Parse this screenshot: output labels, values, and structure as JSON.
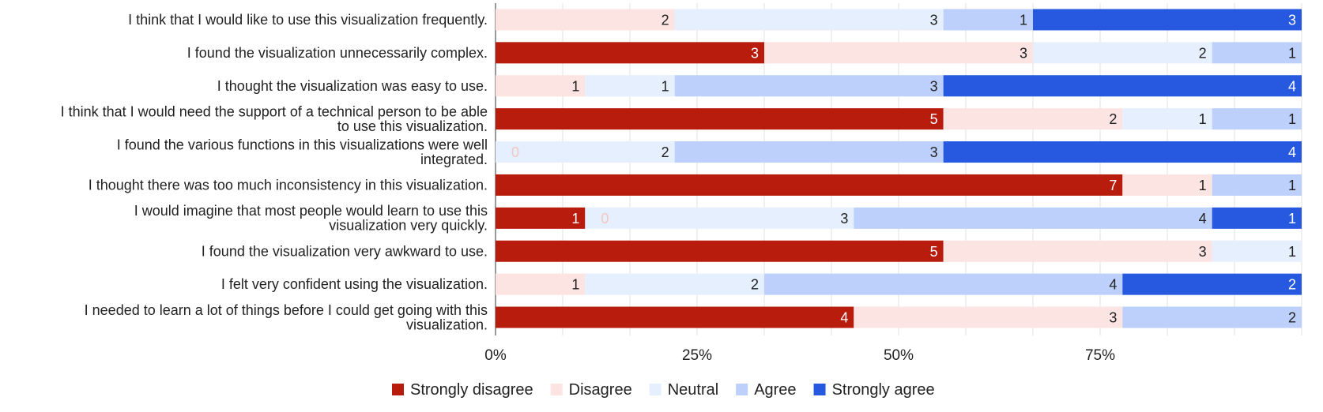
{
  "chart_data": {
    "type": "bar",
    "orientation": "horizontal",
    "stacked": "percent",
    "categories": [
      [
        "I think that I would like to use this visualization frequently."
      ],
      [
        "I found the visualization unnecessarily complex."
      ],
      [
        "I thought the visualization was easy to use."
      ],
      [
        "I think that I would need the support of a technical person to be able",
        "to use this visualization."
      ],
      [
        "I found the various functions in this visualizations were well",
        "integrated."
      ],
      [
        "I thought there was too much inconsistency in this visualization."
      ],
      [
        "I would imagine that most people would learn to use this",
        "visualization very quickly."
      ],
      [
        "I found the visualization very awkward to use."
      ],
      [
        "I felt very confident using the visualization."
      ],
      [
        "I needed to learn a lot of things before I could get going with this",
        "visualization."
      ]
    ],
    "series": [
      {
        "name": "Strongly disagree",
        "color": "#b71c0c",
        "label_color": "#ffffff",
        "values": [
          0,
          3,
          0,
          5,
          0,
          7,
          1,
          5,
          0,
          4
        ]
      },
      {
        "name": "Disagree",
        "color": "#fbe4e1",
        "label_color": "#222222",
        "values": [
          2,
          3,
          1,
          2,
          0,
          1,
          0,
          3,
          1,
          3
        ]
      },
      {
        "name": "Neutral",
        "color": "#e6effd",
        "label_color": "#222222",
        "values": [
          3,
          2,
          1,
          1,
          2,
          0,
          3,
          1,
          2,
          0
        ]
      },
      {
        "name": "Agree",
        "color": "#bcd0fb",
        "label_color": "#222222",
        "values": [
          1,
          1,
          3,
          1,
          3,
          1,
          4,
          0,
          4,
          2
        ]
      },
      {
        "name": "Strongly agree",
        "color": "#2659e0",
        "label_color": "#ffffff",
        "values": [
          3,
          0,
          4,
          0,
          4,
          0,
          1,
          0,
          2,
          0
        ]
      }
    ],
    "zero_labels": [
      {
        "category": 4,
        "series": 1,
        "text": "0"
      },
      {
        "category": 6,
        "series": 1,
        "text": "0"
      }
    ],
    "zero_label_color": "#f3c7c1",
    "x_ticks": [
      {
        "value": 0,
        "label": "0%"
      },
      {
        "value": 0.25,
        "label": "25%"
      },
      {
        "value": 0.5,
        "label": "50%"
      },
      {
        "value": 0.75,
        "label": "75%"
      }
    ],
    "xlim": [
      0,
      1
    ],
    "grid": true,
    "legend": "bottom"
  }
}
